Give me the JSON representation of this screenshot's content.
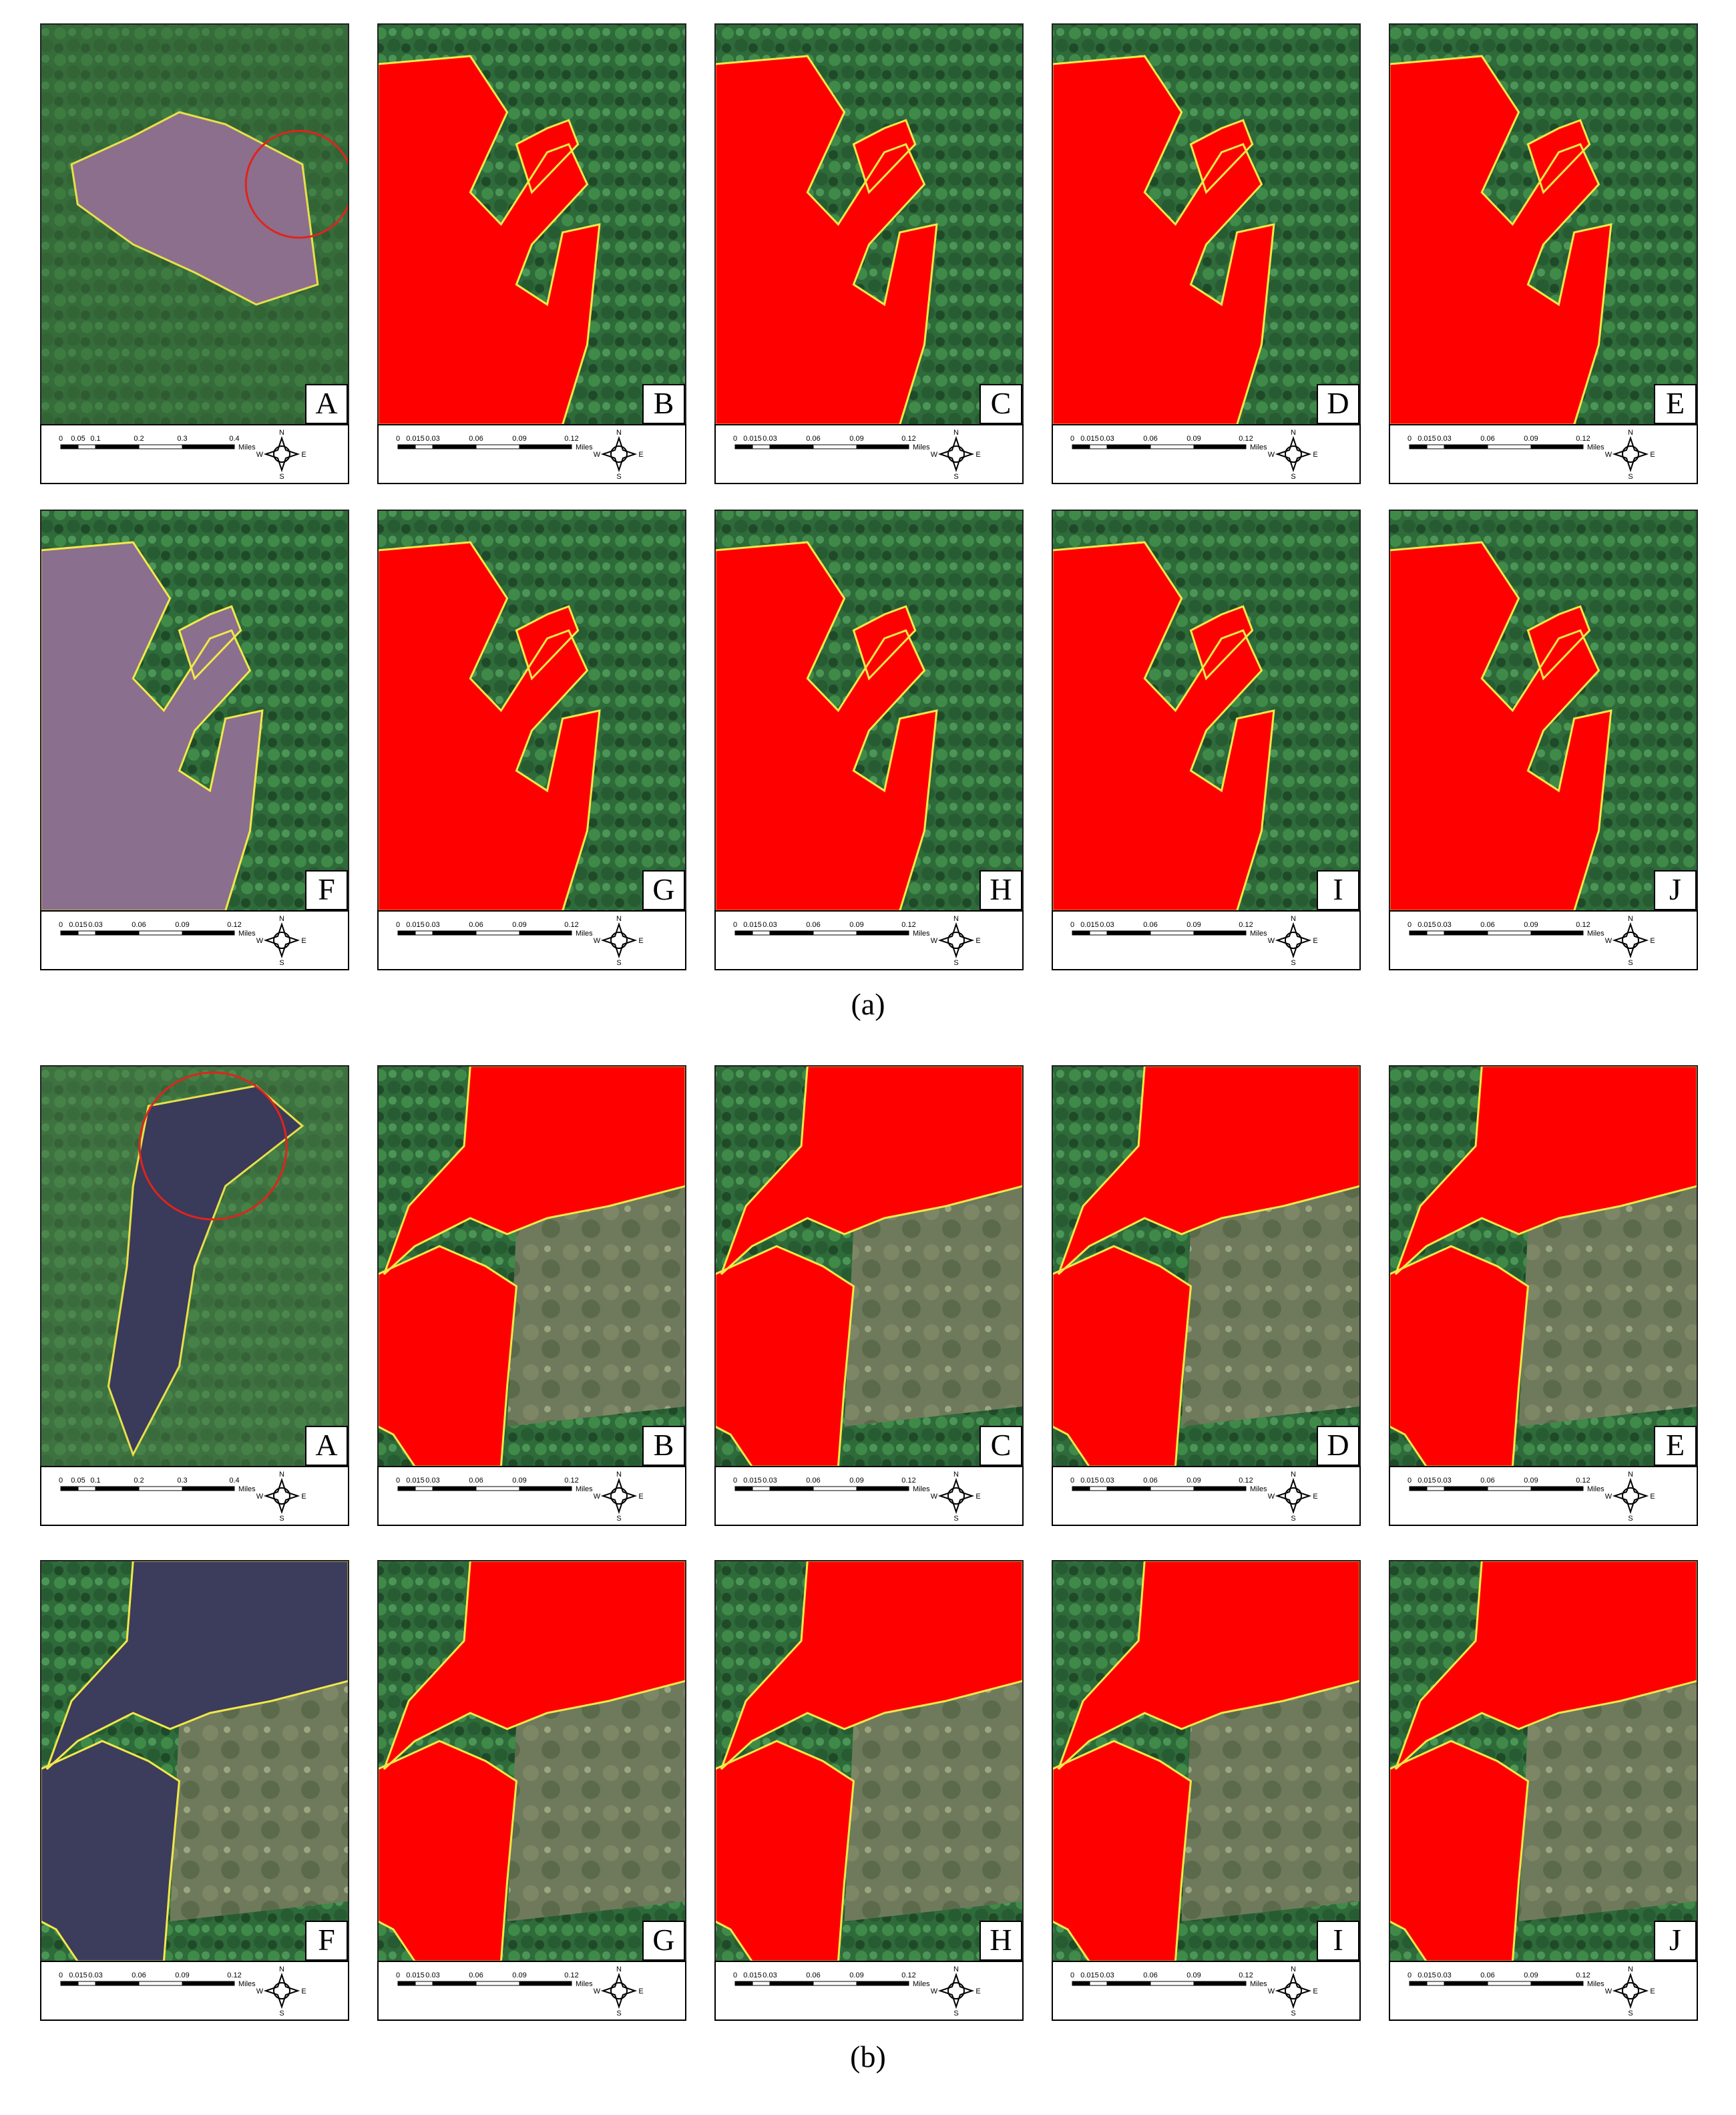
{
  "figure": {
    "compass": [
      "N",
      "E",
      "S",
      "W"
    ],
    "groups": [
      {
        "caption": "(a)",
        "panels": [
          {
            "letter": "A",
            "scale": [
              "0",
              "0.05",
              "0.1",
              "0.2",
              "0.3",
              "0.4"
            ],
            "unit": "Miles"
          },
          {
            "letter": "B",
            "scale": [
              "0",
              "0.015",
              "0.03",
              "0.06",
              "0.09",
              "0.12"
            ],
            "unit": "Miles"
          },
          {
            "letter": "C",
            "scale": [
              "0",
              "0.015",
              "0.03",
              "0.06",
              "0.09",
              "0.12"
            ],
            "unit": "Miles"
          },
          {
            "letter": "D",
            "scale": [
              "0",
              "0.015",
              "0.03",
              "0.06",
              "0.09",
              "0.12"
            ],
            "unit": "Miles"
          },
          {
            "letter": "E",
            "scale": [
              "0",
              "0.015",
              "0.03",
              "0.06",
              "0.09",
              "0.12"
            ],
            "unit": "Miles"
          },
          {
            "letter": "F",
            "scale": [
              "0",
              "0.015",
              "0.03",
              "0.06",
              "0.09",
              "0.12"
            ],
            "unit": "Miles"
          },
          {
            "letter": "G",
            "scale": [
              "0",
              "0.015",
              "0.03",
              "0.06",
              "0.09",
              "0.12"
            ],
            "unit": "Miles"
          },
          {
            "letter": "H",
            "scale": [
              "0",
              "0.015",
              "0.03",
              "0.06",
              "0.09",
              "0.12"
            ],
            "unit": "Miles"
          },
          {
            "letter": "I",
            "scale": [
              "0",
              "0.015",
              "0.03",
              "0.06",
              "0.09",
              "0.12"
            ],
            "unit": "Miles"
          },
          {
            "letter": "J",
            "scale": [
              "0",
              "0.015",
              "0.03",
              "0.06",
              "0.09",
              "0.12"
            ],
            "unit": "Miles"
          }
        ]
      },
      {
        "caption": "(b)",
        "panels": [
          {
            "letter": "A",
            "scale": [
              "0",
              "0.05",
              "0.1",
              "0.2",
              "0.3",
              "0.4"
            ],
            "unit": "Miles"
          },
          {
            "letter": "B",
            "scale": [
              "0",
              "0.015",
              "0.03",
              "0.06",
              "0.09",
              "0.12"
            ],
            "unit": "Miles"
          },
          {
            "letter": "C",
            "scale": [
              "0",
              "0.015",
              "0.03",
              "0.06",
              "0.09",
              "0.12"
            ],
            "unit": "Miles"
          },
          {
            "letter": "D",
            "scale": [
              "0",
              "0.015",
              "0.03",
              "0.06",
              "0.09",
              "0.12"
            ],
            "unit": "Miles"
          },
          {
            "letter": "E",
            "scale": [
              "0",
              "0.015",
              "0.03",
              "0.06",
              "0.09",
              "0.12"
            ],
            "unit": "Miles"
          },
          {
            "letter": "F",
            "scale": [
              "0",
              "0.015",
              "0.03",
              "0.06",
              "0.09",
              "0.12"
            ],
            "unit": "Miles"
          },
          {
            "letter": "G",
            "scale": [
              "0",
              "0.015",
              "0.03",
              "0.06",
              "0.09",
              "0.12"
            ],
            "unit": "Miles"
          },
          {
            "letter": "H",
            "scale": [
              "0",
              "0.015",
              "0.03",
              "0.06",
              "0.09",
              "0.12"
            ],
            "unit": "Miles"
          },
          {
            "letter": "I",
            "scale": [
              "0",
              "0.015",
              "0.03",
              "0.06",
              "0.09",
              "0.12"
            ],
            "unit": "Miles"
          },
          {
            "letter": "J",
            "scale": [
              "0",
              "0.015",
              "0.03",
              "0.06",
              "0.09",
              "0.12"
            ],
            "unit": "Miles"
          }
        ]
      }
    ]
  }
}
